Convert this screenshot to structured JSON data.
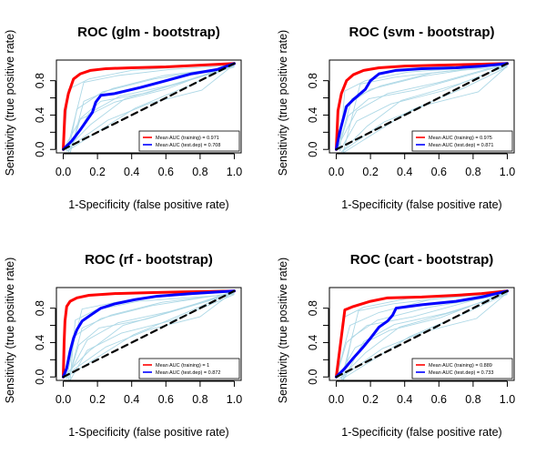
{
  "chart_data": [
    {
      "type": "line",
      "title": "ROC (glm - bootstrap)",
      "xlabel": "1-Specificity (false positive rate)",
      "ylabel": "Sensitivity (true positive rate)",
      "xlim": [
        0,
        1
      ],
      "ylim": [
        0,
        1
      ],
      "xticks": [
        "0.0",
        "0.2",
        "0.4",
        "0.6",
        "0.8",
        "1.0"
      ],
      "yticks": [
        "0.0",
        "0.4",
        "0.8"
      ],
      "legend": {
        "position": "bottom-right",
        "entries": [
          "Mean AUC (training) = 0.971",
          "Mean AUC (test.dep) = 0.708"
        ]
      },
      "series": [
        {
          "name": "Mean AUC (training) = 0.971",
          "color": "#ff0000",
          "x": [
            0,
            0.01,
            0.03,
            0.06,
            0.1,
            0.16,
            0.25,
            0.4,
            0.6,
            0.8,
            1.0
          ],
          "y": [
            0,
            0.45,
            0.65,
            0.82,
            0.88,
            0.92,
            0.94,
            0.95,
            0.96,
            0.98,
            1.0
          ]
        },
        {
          "name": "Mean AUC (test.dep) = 0.708",
          "color": "#0000ff",
          "x": [
            0,
            0.05,
            0.1,
            0.17,
            0.19,
            0.22,
            0.3,
            0.45,
            0.6,
            0.75,
            0.9,
            1.0
          ],
          "y": [
            0,
            0.1,
            0.23,
            0.43,
            0.55,
            0.63,
            0.65,
            0.72,
            0.8,
            0.88,
            0.93,
            1.0
          ]
        },
        {
          "name": "",
          "color": "#000000",
          "dashed": true,
          "x": [
            0,
            1
          ],
          "y": [
            0,
            1
          ]
        }
      ]
    },
    {
      "type": "line",
      "title": "ROC (svm - bootstrap)",
      "xlabel": "1-Specificity (false positive rate)",
      "ylabel": "Sensitivity (true positive rate)",
      "xlim": [
        0,
        1
      ],
      "ylim": [
        0,
        1
      ],
      "xticks": [
        "0.0",
        "0.2",
        "0.4",
        "0.6",
        "0.8",
        "1.0"
      ],
      "yticks": [
        "0.0",
        "0.4",
        "0.8"
      ],
      "legend": {
        "position": "bottom-right",
        "entries": [
          "Mean AUC (training) = 0.975",
          "Mean AUC (test.dep) = 0.871"
        ]
      },
      "series": [
        {
          "name": "Mean AUC (training) = 0.975",
          "color": "#ff0000",
          "x": [
            0,
            0.01,
            0.03,
            0.06,
            0.1,
            0.16,
            0.25,
            0.4,
            0.6,
            0.8,
            1.0
          ],
          "y": [
            0,
            0.45,
            0.65,
            0.8,
            0.87,
            0.92,
            0.95,
            0.97,
            0.98,
            0.99,
            1.0
          ]
        },
        {
          "name": "Mean AUC (test.dep) = 0.871",
          "color": "#0000ff",
          "x": [
            0,
            0.02,
            0.04,
            0.06,
            0.1,
            0.17,
            0.2,
            0.25,
            0.35,
            0.5,
            0.7,
            0.85,
            1.0
          ],
          "y": [
            0,
            0.2,
            0.35,
            0.5,
            0.58,
            0.7,
            0.8,
            0.88,
            0.92,
            0.94,
            0.95,
            0.97,
            1.0
          ]
        },
        {
          "name": "",
          "color": "#000000",
          "dashed": true,
          "x": [
            0,
            1
          ],
          "y": [
            0,
            1
          ]
        }
      ]
    },
    {
      "type": "line",
      "title": "ROC (rf - bootstrap)",
      "xlabel": "1-Specificity (false positive rate)",
      "ylabel": "Sensitivity (true positive rate)",
      "xlim": [
        0,
        1
      ],
      "ylim": [
        0,
        1
      ],
      "xticks": [
        "0.0",
        "0.2",
        "0.4",
        "0.6",
        "0.8",
        "1.0"
      ],
      "yticks": [
        "0.0",
        "0.4",
        "0.8"
      ],
      "legend": {
        "position": "bottom-right",
        "entries": [
          "Mean AUC (training) = 1",
          "Mean AUC (test.dep) = 0.872"
        ]
      },
      "series": [
        {
          "name": "Mean AUC (training) = 1",
          "color": "#ff0000",
          "x": [
            0,
            0.005,
            0.01,
            0.02,
            0.04,
            0.08,
            0.15,
            0.3,
            0.5,
            0.7,
            1.0
          ],
          "y": [
            0,
            0.4,
            0.65,
            0.82,
            0.88,
            0.92,
            0.95,
            0.97,
            0.98,
            0.99,
            1.0
          ]
        },
        {
          "name": "Mean AUC (test.dep) = 0.872",
          "color": "#0000ff",
          "x": [
            0,
            0.02,
            0.04,
            0.06,
            0.08,
            0.11,
            0.16,
            0.22,
            0.3,
            0.42,
            0.55,
            0.75,
            1.0
          ],
          "y": [
            0,
            0.1,
            0.3,
            0.45,
            0.55,
            0.65,
            0.72,
            0.8,
            0.85,
            0.9,
            0.94,
            0.97,
            1.0
          ]
        },
        {
          "name": "",
          "color": "#000000",
          "dashed": true,
          "x": [
            0,
            1
          ],
          "y": [
            0,
            1
          ]
        }
      ]
    },
    {
      "type": "line",
      "title": "ROC (cart - bootstrap)",
      "xlabel": "1-Specificity (false positive rate)",
      "ylabel": "Sensitivity (true positive rate)",
      "xlim": [
        0,
        1
      ],
      "ylim": [
        0,
        1
      ],
      "xticks": [
        "0.0",
        "0.2",
        "0.4",
        "0.6",
        "0.8",
        "1.0"
      ],
      "yticks": [
        "0.0",
        "0.4",
        "0.8"
      ],
      "legend": {
        "position": "bottom-right",
        "entries": [
          "Mean AUC (training) = 0.889",
          "Mean AUC (test.dep) = 0.733"
        ]
      },
      "series": [
        {
          "name": "Mean AUC (training) = 0.889",
          "color": "#ff0000",
          "x": [
            0,
            0.05,
            0.1,
            0.2,
            0.3,
            0.5,
            0.7,
            0.85,
            1.0
          ],
          "y": [
            0,
            0.78,
            0.82,
            0.88,
            0.92,
            0.93,
            0.95,
            0.97,
            1.0
          ]
        },
        {
          "name": "Mean AUC (test.dep) = 0.733",
          "color": "#0000ff",
          "x": [
            0,
            0.05,
            0.1,
            0.15,
            0.2,
            0.25,
            0.3,
            0.33,
            0.35,
            0.5,
            0.7,
            0.85,
            1.0
          ],
          "y": [
            0,
            0.1,
            0.22,
            0.33,
            0.45,
            0.58,
            0.65,
            0.72,
            0.8,
            0.84,
            0.88,
            0.93,
            1.0
          ]
        },
        {
          "name": "",
          "color": "#000000",
          "dashed": true,
          "x": [
            0,
            1
          ],
          "y": [
            0,
            1
          ]
        }
      ]
    }
  ]
}
